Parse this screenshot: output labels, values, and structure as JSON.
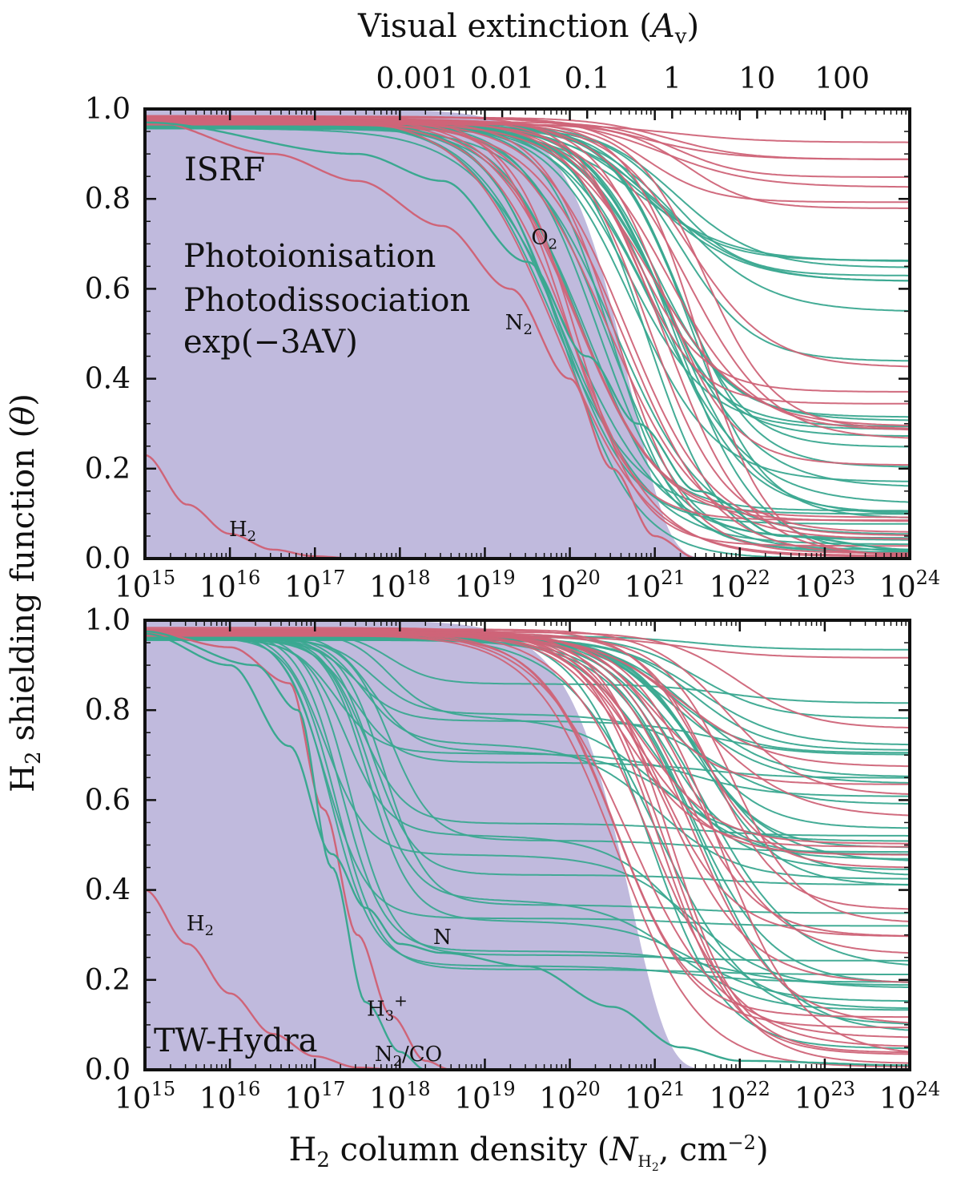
{
  "figure": {
    "top_axis_title": "Visual extinction (Av)",
    "y_axis_title": "H2 shielding function (θ)",
    "x_axis_title": "H2 column density (NH2, cm−2)",
    "legend": {
      "photoionisation": "Photoionisation",
      "photodissociation": "Photodissociation",
      "exp": "exp(−3AV)"
    }
  },
  "colors": {
    "photoionisation": "#3aa890",
    "photodissociation": "#cf6478",
    "exp_fill": "#c0badd",
    "exp_text": "#3a2c86",
    "axis": "#111111"
  },
  "chart_data": [
    {
      "type": "line",
      "panel": "top",
      "title": "ISRF",
      "x_scale": "log",
      "xlim": [
        1000000000000000.0,
        1e+24
      ],
      "ylim": [
        0,
        1
      ],
      "x_ticks": [
        "10^15",
        "10^16",
        "10^17",
        "10^18",
        "10^19",
        "10^20",
        "10^21",
        "10^22",
        "10^23",
        "10^24"
      ],
      "y_ticks": [
        "0.0",
        "0.2",
        "0.4",
        "0.6",
        "0.8",
        "1.0"
      ],
      "top_axis": {
        "label": "Visual extinction (Av)",
        "ticks": [
          {
            "value": 0.001,
            "label": "0.001"
          },
          {
            "value": 0.01,
            "label": "0.01"
          },
          {
            "value": 0.1,
            "label": "0.1"
          },
          {
            "value": 1,
            "label": "1"
          },
          {
            "value": 10,
            "label": "10"
          },
          {
            "value": 100,
            "label": "100"
          }
        ]
      },
      "annotations": [
        {
          "text": "O2",
          "series": "photoionisation",
          "at_logN": 19.7,
          "at_theta": 0.7
        },
        {
          "text": "N2",
          "series": "photodissociation",
          "at_logN": 19.4,
          "at_theta": 0.51
        },
        {
          "text": "H2",
          "series": "photodissociation",
          "at_logN": 16.15,
          "at_theta": 0.05
        }
      ],
      "exp_curve": "exp(-3 Av), Av = N / 1.6e21 cm^-2",
      "series": [
        {
          "name": "H2",
          "group": "photodissociation",
          "curve": [
            [
              15,
              0.23
            ],
            [
              15.5,
              0.12
            ],
            [
              16,
              0.055
            ],
            [
              16.5,
              0.02
            ],
            [
              17,
              0.005
            ],
            [
              17.5,
              0.0
            ]
          ]
        },
        {
          "name": "N2",
          "group": "photodissociation",
          "curve": [
            [
              15,
              0.975
            ],
            [
              16.5,
              0.9
            ],
            [
              17.5,
              0.84
            ],
            [
              18.5,
              0.74
            ],
            [
              19.3,
              0.6
            ],
            [
              20,
              0.4
            ],
            [
              20.5,
              0.2
            ],
            [
              21,
              0.05
            ],
            [
              21.5,
              0.0
            ]
          ]
        },
        {
          "name": "O2",
          "group": "photoionisation",
          "curve": [
            [
              15,
              0.97
            ],
            [
              17.5,
              0.9
            ],
            [
              18.5,
              0.84
            ],
            [
              19.5,
              0.66
            ],
            [
              20.2,
              0.45
            ],
            [
              20.8,
              0.3
            ],
            [
              21.5,
              0.15
            ],
            [
              22.5,
              0.05
            ],
            [
              24,
              0.02
            ]
          ]
        },
        {
          "group": "photoionisation",
          "family": {
            "count": 34,
            "start_theta": 0.975,
            "mid_logN": [
              19.8,
              21.4
            ],
            "steepness": [
              1.8,
              2.6
            ],
            "end_theta": [
              0.0,
              0.74
            ]
          }
        },
        {
          "group": "photodissociation",
          "family": {
            "count": 28,
            "start_theta": 0.985,
            "mid_logN": [
              19.7,
              21.6
            ],
            "steepness": [
              1.8,
              2.7
            ],
            "end_theta": [
              0.0,
              0.96
            ]
          }
        }
      ]
    },
    {
      "type": "line",
      "panel": "bottom",
      "title": "TW-Hydra",
      "x_scale": "log",
      "xlim": [
        1000000000000000.0,
        1e+24
      ],
      "ylim": [
        0,
        1
      ],
      "x_ticks": [
        "10^15",
        "10^16",
        "10^17",
        "10^18",
        "10^19",
        "10^20",
        "10^21",
        "10^22",
        "10^23",
        "10^24"
      ],
      "y_ticks": [
        "0.0",
        "0.2",
        "0.4",
        "0.6",
        "0.8",
        "1.0"
      ],
      "annotations": [
        {
          "text": "H2",
          "series": "photodissociation",
          "at_logN": 15.65,
          "at_theta": 0.31
        },
        {
          "text": "N",
          "series": "photoionisation",
          "at_logN": 18.5,
          "at_theta": 0.28
        },
        {
          "text": "H3+",
          "series": "photodissociation",
          "at_logN": 17.85,
          "at_theta": 0.12
        },
        {
          "text": "N2/CO",
          "series": "photoionisation",
          "at_logN": 18.1,
          "at_theta": 0.02
        }
      ],
      "exp_curve": "exp(-3 Av), Av = N / 1.6e21 cm^-2",
      "series": [
        {
          "name": "H2",
          "group": "photodissociation",
          "curve": [
            [
              15,
              0.4
            ],
            [
              15.5,
              0.28
            ],
            [
              16,
              0.17
            ],
            [
              16.5,
              0.08
            ],
            [
              17,
              0.03
            ],
            [
              17.5,
              0.005
            ],
            [
              18,
              0.0
            ]
          ]
        },
        {
          "name": "H3+",
          "group": "photodissociation",
          "curve": [
            [
              15,
              0.975
            ],
            [
              16,
              0.94
            ],
            [
              16.7,
              0.86
            ],
            [
              17.1,
              0.58
            ],
            [
              17.5,
              0.3
            ],
            [
              17.9,
              0.12
            ],
            [
              18.3,
              0.02
            ],
            [
              18.6,
              0.0
            ]
          ]
        },
        {
          "name": "N",
          "group": "photoionisation",
          "curve": [
            [
              15,
              0.97
            ],
            [
              16,
              0.9
            ],
            [
              16.7,
              0.72
            ],
            [
              17.2,
              0.48
            ],
            [
              17.6,
              0.36
            ],
            [
              18,
              0.28
            ],
            [
              18.5,
              0.26
            ],
            [
              19.5,
              0.23
            ],
            [
              20.5,
              0.14
            ],
            [
              21.3,
              0.05
            ],
            [
              22,
              0.02
            ],
            [
              24,
              0.01
            ]
          ]
        },
        {
          "name": "N2/CO",
          "group": "photoionisation",
          "curve": [
            [
              15,
              0.975
            ],
            [
              16.3,
              0.9
            ],
            [
              16.8,
              0.8
            ],
            [
              17.2,
              0.45
            ],
            [
              17.6,
              0.15
            ],
            [
              18,
              0.04
            ],
            [
              18.3,
              0.0
            ]
          ]
        },
        {
          "group": "photoionisation",
          "family": {
            "count": 40,
            "start_theta": 0.975,
            "early_drop_logN": 17.1,
            "plateau_theta": [
              0.2,
              0.9
            ],
            "mid_logN": [
              20.8,
              21.6
            ],
            "end_theta": [
              0.0,
              0.95
            ]
          }
        },
        {
          "group": "photodissociation",
          "family": {
            "count": 26,
            "start_theta": 0.985,
            "mid_logN": [
              20.5,
              22.0
            ],
            "end_theta": [
              0.0,
              0.96
            ]
          }
        }
      ]
    }
  ]
}
